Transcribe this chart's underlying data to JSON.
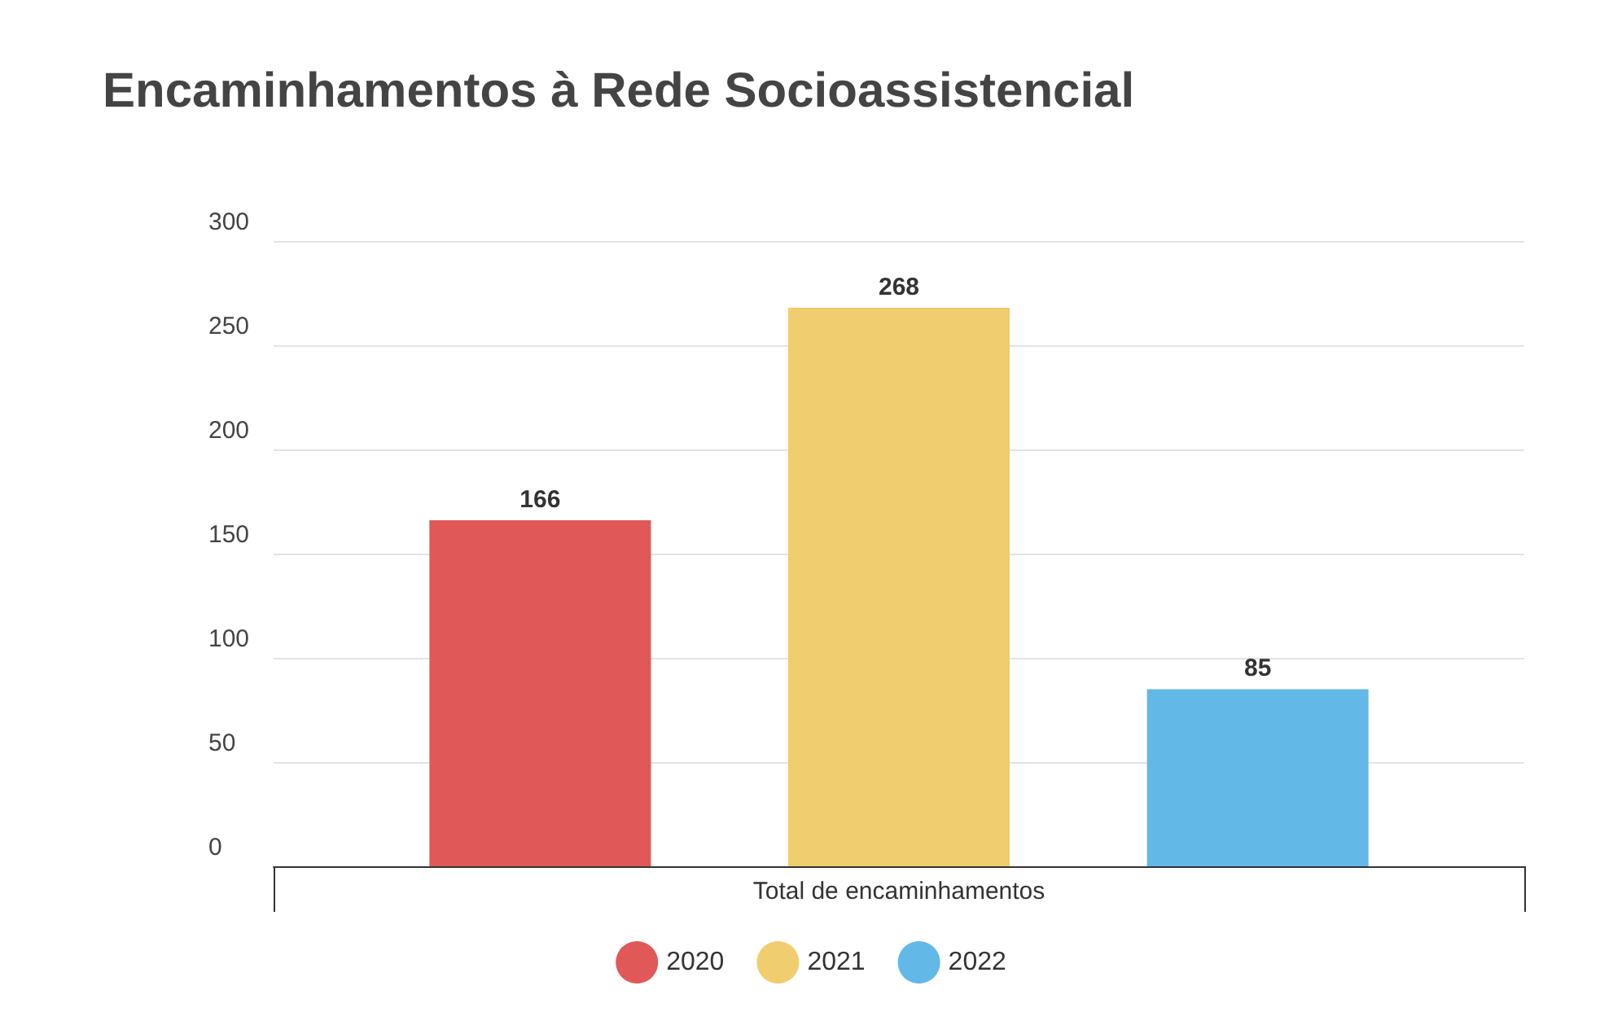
{
  "chart_data": {
    "type": "bar",
    "title": "Encaminhamentos à Rede Socioassistencial",
    "categories": [
      "Total de encaminhamentos"
    ],
    "series": [
      {
        "name": "2020",
        "color": "#e05858",
        "values": [
          166
        ]
      },
      {
        "name": "2021",
        "color": "#f0cd6e",
        "values": [
          268
        ]
      },
      {
        "name": "2022",
        "color": "#62b8e6",
        "values": [
          85
        ]
      }
    ],
    "ylim": [
      0,
      300
    ],
    "yticks": [
      0,
      50,
      100,
      150,
      200,
      250,
      300
    ],
    "grid": "y",
    "data_labels": true,
    "legend": "bottom"
  }
}
